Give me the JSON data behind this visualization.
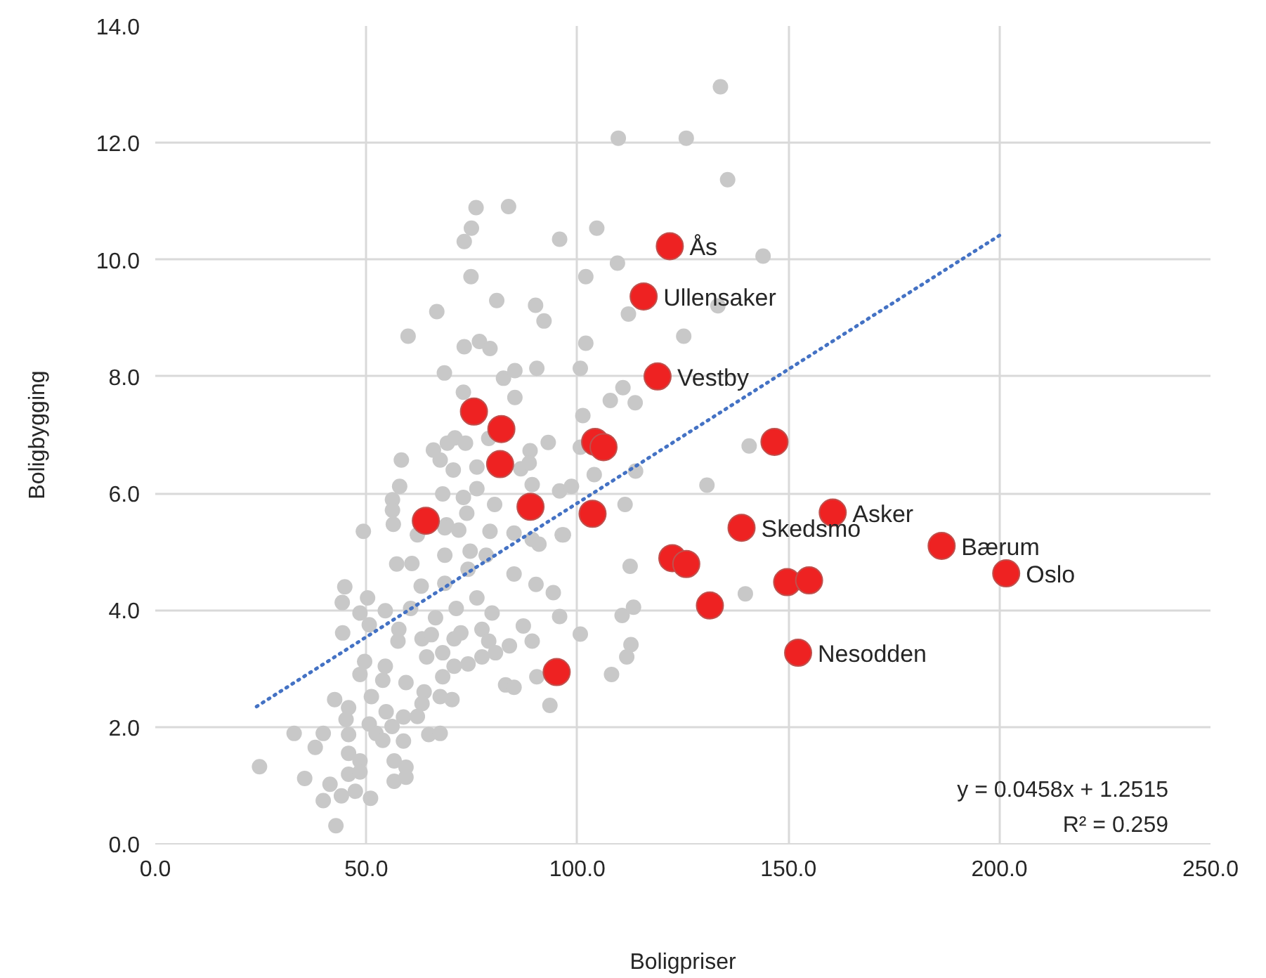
{
  "chart_data": {
    "type": "scatter",
    "xlabel": "Boligpriser",
    "ylabel": "Boligbygging",
    "xlim": [
      0,
      250
    ],
    "ylim": [
      0,
      14
    ],
    "xticks": [
      {
        "value": 0,
        "label": "0.0"
      },
      {
        "value": 50,
        "label": "50.0"
      },
      {
        "value": 100,
        "label": "100.0"
      },
      {
        "value": 150,
        "label": "150.0"
      },
      {
        "value": 200,
        "label": "200.0"
      },
      {
        "value": 250,
        "label": "250.0"
      }
    ],
    "yticks": [
      {
        "value": 0,
        "label": "0.0"
      },
      {
        "value": 2,
        "label": "2.0"
      },
      {
        "value": 4,
        "label": "4.0"
      },
      {
        "value": 6,
        "label": "6.0"
      },
      {
        "value": 8,
        "label": "8.0"
      },
      {
        "value": 10,
        "label": "10.0"
      },
      {
        "value": 12,
        "label": "12.0"
      },
      {
        "value": 14,
        "label": "14.0"
      }
    ],
    "grid": true,
    "series": [
      {
        "color": "#c8c8c8",
        "marker": "circle",
        "x": [
          133.9,
          109.7,
          125.8,
          135.6,
          95.8,
          104.6,
          144.0,
          109.5,
          102.0,
          112.1,
          133.3,
          102.0,
          125.2,
          100.7,
          110.8,
          107.8,
          113.7,
          101.3,
          100.7,
          140.7,
          76.0,
          83.7,
          74.9,
          73.2,
          74.8,
          80.9,
          90.1,
          92.1,
          66.7,
          59.9,
          73.2,
          76.8,
          79.3,
          68.5,
          82.5,
          85.2,
          90.4,
          73.0,
          85.2,
          58.3,
          65.9,
          67.5,
          70.6,
          69.2,
          71.0,
          73.5,
          79.0,
          88.8,
          93.1,
          76.2,
          86.6,
          88.6,
          57.9,
          68.1,
          73.0,
          76.2,
          80.4,
          89.3,
          95.8,
          56.2,
          56.2,
          73.8,
          69.0,
          49.3,
          56.4,
          62.1,
          68.6,
          71.9,
          79.3,
          85.0,
          89.3,
          90.9,
          96.4,
          57.2,
          60.8,
          68.6,
          74.6,
          78.4,
          74.1,
          85.0,
          90.2,
          94.3,
          63.0,
          68.6,
          44.9,
          44.3,
          50.3,
          48.5,
          54.5,
          60.5,
          66.4,
          71.3,
          76.2,
          79.8,
          95.8,
          87.2,
          89.3,
          44.4,
          50.7,
          57.7,
          63.2,
          72.4,
          77.4,
          57.5,
          65.4,
          70.8,
          79.0,
          83.9,
          49.6,
          54.5,
          59.4,
          64.3,
          68.1,
          70.8,
          74.1,
          77.4,
          80.6,
          68.1,
          48.5,
          53.9,
          83.0,
          85.0,
          90.4,
          93.5,
          42.5,
          45.8,
          51.2,
          54.7,
          58.8,
          63.7,
          63.2,
          67.5,
          70.3,
          62.1,
          45.2,
          50.7,
          32.9,
          39.8,
          45.8,
          52.3,
          56.1,
          64.8,
          67.5,
          37.9,
          45.8,
          48.5,
          53.9,
          58.8,
          56.6,
          24.7,
          35.4,
          41.4,
          45.8,
          48.5,
          56.6,
          59.4,
          59.4,
          39.8,
          44.1,
          47.4,
          51.0,
          42.8,
          130.7,
          111.3,
          104.0,
          113.8,
          98.6,
          96.7,
          112.5,
          139.8,
          110.6,
          113.3,
          100.7,
          112.7,
          111.7,
          108.1
        ],
        "values": [
          12.96,
          12.08,
          12.08,
          11.37,
          10.35,
          10.54,
          10.06,
          9.94,
          9.71,
          9.07,
          9.21,
          8.57,
          8.69,
          8.14,
          7.81,
          7.59,
          7.55,
          7.33,
          6.79,
          6.81,
          10.89,
          10.91,
          10.54,
          10.31,
          9.71,
          9.3,
          9.22,
          8.95,
          9.11,
          8.69,
          8.51,
          8.6,
          8.48,
          8.06,
          7.97,
          8.1,
          8.14,
          7.73,
          7.64,
          6.57,
          6.74,
          6.57,
          6.4,
          6.86,
          6.95,
          6.86,
          6.94,
          6.73,
          6.87,
          6.45,
          6.42,
          6.52,
          6.12,
          5.99,
          5.93,
          6.08,
          5.81,
          6.15,
          6.04,
          5.89,
          5.71,
          5.66,
          5.46,
          5.35,
          5.47,
          5.29,
          5.41,
          5.37,
          5.35,
          5.32,
          5.21,
          5.13,
          5.29,
          4.79,
          4.8,
          4.94,
          5.01,
          4.94,
          4.7,
          4.62,
          4.44,
          4.3,
          4.41,
          4.46,
          4.4,
          4.13,
          4.21,
          3.95,
          3.99,
          4.03,
          3.87,
          4.03,
          4.21,
          3.95,
          3.89,
          3.73,
          3.47,
          3.61,
          3.75,
          3.67,
          3.51,
          3.61,
          3.67,
          3.47,
          3.58,
          3.51,
          3.47,
          3.39,
          3.12,
          3.04,
          2.76,
          3.2,
          3.27,
          3.04,
          3.08,
          3.2,
          3.27,
          2.86,
          2.9,
          2.8,
          2.72,
          2.68,
          2.86,
          2.37,
          2.47,
          2.33,
          2.52,
          2.26,
          2.17,
          2.6,
          2.4,
          2.52,
          2.47,
          2.18,
          2.13,
          2.05,
          1.89,
          1.89,
          1.87,
          1.89,
          2.01,
          1.87,
          1.89,
          1.65,
          1.55,
          1.42,
          1.77,
          1.76,
          1.42,
          1.32,
          1.12,
          1.02,
          1.19,
          1.23,
          1.07,
          1.14,
          1.31,
          0.74,
          0.82,
          0.9,
          0.78,
          0.31,
          6.14,
          5.81,
          6.32,
          6.38,
          6.12,
          5.29,
          4.75,
          4.28,
          3.91,
          4.05,
          3.59,
          3.41,
          3.2,
          2.9
        ]
      },
      {
        "color": "#ee2222",
        "marker": "circle",
        "x": [
          121.9,
          115.7,
          119.0,
          75.5,
          82.0,
          81.7,
          104.2,
          106.2,
          146.7,
          64.1,
          88.9,
          103.6,
          138.9,
          160.5,
          186.3,
          201.6,
          122.5,
          125.8,
          131.4,
          149.7,
          154.9,
          152.3,
          95.1
        ],
        "values": [
          10.23,
          9.37,
          8.0,
          7.4,
          7.1,
          6.5,
          6.88,
          6.79,
          6.88,
          5.53,
          5.77,
          5.65,
          5.41,
          5.67,
          5.1,
          4.63,
          4.89,
          4.79,
          4.08,
          4.48,
          4.51,
          3.27,
          2.94
        ]
      },
      {
        "type": "line",
        "color": "#4472c4",
        "line_style": "dotted",
        "x": [
          24,
          201
        ],
        "values": [
          2.35,
          10.46
        ]
      }
    ],
    "annotations": [
      {
        "text": "Ås",
        "x": 121.9,
        "y": 10.23
      },
      {
        "text": "Ullensaker",
        "x": 115.7,
        "y": 9.37
      },
      {
        "text": "Vestby",
        "x": 119.0,
        "y": 8.0
      },
      {
        "text": "Skedsmo",
        "x": 138.9,
        "y": 5.41
      },
      {
        "text": "Asker",
        "x": 160.5,
        "y": 5.67
      },
      {
        "text": "Bærum",
        "x": 186.3,
        "y": 5.1
      },
      {
        "text": "Oslo",
        "x": 201.6,
        "y": 4.63
      },
      {
        "text": "Nesodden",
        "x": 152.3,
        "y": 3.27
      },
      "y = 0.0458x + 1.2515",
      "R² = 0.259"
    ]
  }
}
